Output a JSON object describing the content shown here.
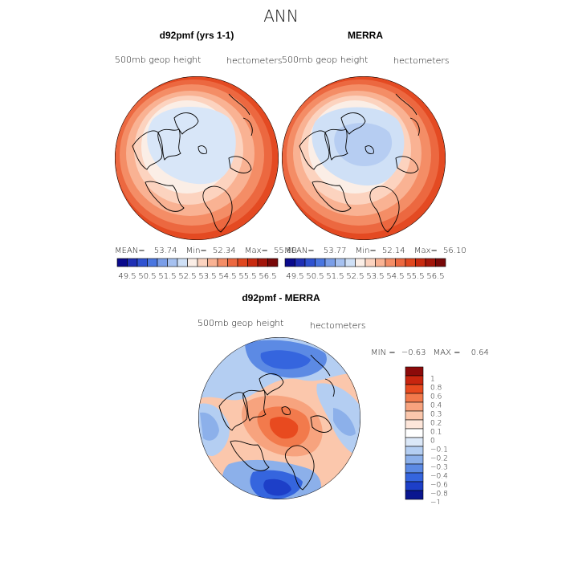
{
  "page_title": "ANN",
  "scale_top": {
    "values": [
      49.5,
      50.5,
      51.5,
      52.5,
      53.5,
      54.5,
      55.5,
      56.5
    ],
    "labels": [
      "49.5",
      "50.5",
      "51.5",
      "52.5",
      "53.5",
      "54.5",
      "55.5",
      "56.5"
    ],
    "colors": [
      "#0a0a8c",
      "#1f2fb4",
      "#2f52d0",
      "#4a76e0",
      "#7a9ee8",
      "#a6c1f0",
      "#cfe0f6",
      "#fbeee6",
      "#fcd3bf",
      "#f9b293",
      "#f48d66",
      "#ec6840",
      "#e0471f",
      "#c82a0f",
      "#a2150a",
      "#780808"
    ]
  },
  "scale_diff": {
    "labels": [
      "1",
      "0.8",
      "0.6",
      "0.4",
      "0.3",
      "0.2",
      "0.1",
      "0",
      "−0.1",
      "−0.2",
      "−0.3",
      "−0.4",
      "−0.6",
      "−0.8",
      "−1"
    ],
    "colors": [
      "#8c0a0a",
      "#c8250f",
      "#e84a1f",
      "#f27a4c",
      "#f7a37e",
      "#fbc7ac",
      "#fde6da",
      "#ffffff",
      "#dbe8f8",
      "#b4cef2",
      "#8cb0ea",
      "#5c8ae4",
      "#3565de",
      "#1d3fc8",
      "#0a1690"
    ]
  },
  "panels": {
    "left": {
      "title": "d92pmf (yrs 1-1)",
      "var_label": "500mb geop height",
      "units": "hectometers",
      "stats": {
        "mean_label": "MEAN=",
        "mean": "53.74",
        "min_label": "Min=",
        "min": "52.34",
        "max_label": "Max=",
        "max": "55.80"
      }
    },
    "right": {
      "title": "MERRA",
      "var_label": "500mb geop height",
      "units": "hectometers",
      "stats": {
        "mean_label": "MEAN=",
        "mean": "53.77",
        "min_label": "Min=",
        "min": "52.14",
        "max_label": "Max=",
        "max": "56.10"
      }
    },
    "diff": {
      "title": "d92pmf - MERRA",
      "var_label": "500mb geop height",
      "units": "hectometers",
      "stats": {
        "min_label": "MIN =",
        "min": "−0.63",
        "max_label": "MAX =",
        "max": "0.64"
      }
    }
  },
  "chart_data": [
    {
      "type": "heatmap",
      "title": "d92pmf (yrs 1-1)",
      "variable": "500mb geop height",
      "units": "hectometers",
      "projection": "north polar stereographic",
      "mean": 53.74,
      "min": 52.34,
      "max": 55.8,
      "colorbar": [
        49.5,
        50.5,
        51.5,
        52.5,
        53.5,
        54.5,
        55.5,
        56.5
      ]
    },
    {
      "type": "heatmap",
      "title": "MERRA",
      "variable": "500mb geop height",
      "units": "hectometers",
      "projection": "north polar stereographic",
      "mean": 53.77,
      "min": 52.14,
      "max": 56.1,
      "colorbar": [
        49.5,
        50.5,
        51.5,
        52.5,
        53.5,
        54.5,
        55.5,
        56.5
      ]
    },
    {
      "type": "heatmap",
      "title": "d92pmf - MERRA",
      "variable": "500mb geop height",
      "units": "hectometers",
      "projection": "north polar stereographic",
      "min": -0.63,
      "max": 0.64,
      "colorbar": [
        -1,
        -0.8,
        -0.6,
        -0.4,
        -0.3,
        -0.2,
        -0.1,
        0,
        0.1,
        0.2,
        0.3,
        0.4,
        0.6,
        0.8,
        1
      ]
    }
  ]
}
